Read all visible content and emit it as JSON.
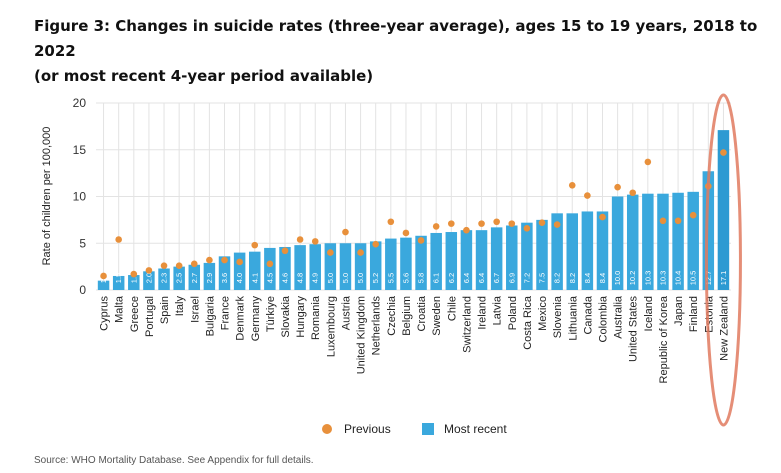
{
  "figure": {
    "title_line1": "Figure 3: Changes in suicide rates (three-year average), ages 15 to 19 years, 2018 to 2022",
    "title_line2": "(or most recent 4-year period available)",
    "source": "Source: WHO Mortality Database. See Appendix for full details."
  },
  "colors": {
    "bar": "#3aa8dd",
    "highlight_bar": "#2d9ad2",
    "dot": "#e8903b",
    "grid": "#e3e3e3",
    "annotation": "#e07a5f"
  },
  "chart_data": {
    "type": "bar",
    "title": "Figure 3: Changes in suicide rates (three-year average), ages 15 to 19 years, 2018 to 2022 (or most recent 4-year period available)",
    "ylabel": "Rate of children per 100,000",
    "xlabel": "",
    "ylim": [
      0,
      20
    ],
    "yticks": [
      0,
      5,
      10,
      15,
      20
    ],
    "grid": "vertical and horizontal",
    "legend_position": "bottom-center",
    "categories": [
      "Cyprus",
      "Malta",
      "Greece",
      "Portugal",
      "Spain",
      "Italy",
      "Israel",
      "Bulgaria",
      "France",
      "Denmark",
      "Germany",
      "Türkiye",
      "Slovakia",
      "Hungary",
      "Romania",
      "Luxembourg",
      "Austria",
      "United Kingdom",
      "Netherlands",
      "Czechia",
      "Belgium",
      "Croatia",
      "Sweden",
      "Chile",
      "Switzerland",
      "Ireland",
      "Latvia",
      "Poland",
      "Costa Rica",
      "Mexico",
      "Slovenia",
      "Lithuania",
      "Canada",
      "Colombia",
      "Australia",
      "United States",
      "Iceland",
      "Republic of Korea",
      "Japan",
      "Finland",
      "Estonia",
      "New Zealand"
    ],
    "series": [
      {
        "name": "Most recent",
        "kind": "bar",
        "values": [
          1.0,
          1.5,
          1.6,
          2.0,
          2.3,
          2.5,
          2.7,
          2.9,
          3.6,
          4.0,
          4.1,
          4.5,
          4.6,
          4.8,
          4.9,
          5.0,
          5.0,
          5.0,
          5.2,
          5.5,
          5.6,
          5.8,
          6.1,
          6.2,
          6.4,
          6.4,
          6.7,
          6.9,
          7.2,
          7.5,
          8.2,
          8.2,
          8.4,
          8.4,
          10.0,
          10.2,
          10.3,
          10.3,
          10.4,
          10.5,
          12.7,
          17.1
        ],
        "labels": [
          "1.0",
          "1.5",
          "1.6",
          "2.0",
          "2.3",
          "2.5",
          "2.7",
          "2.9",
          "3.6",
          "4.0",
          "4.1",
          "4.5",
          "4.6",
          "4.8",
          "4.9",
          "5.0",
          "5.0",
          "5.0",
          "5.2",
          "5.5",
          "5.6",
          "5.8",
          "6.1",
          "6.2",
          "6.4",
          "6.4",
          "6.7",
          "6.9",
          "7.2",
          "7.5",
          "8.2",
          "8.2",
          "8.4",
          "8.4",
          "10.0",
          "10.2",
          "10.3",
          "10.3",
          "10.4",
          "10.5",
          "12.7",
          "17.1"
        ]
      },
      {
        "name": "Previous",
        "kind": "dot",
        "values": [
          1.5,
          5.4,
          1.7,
          2.1,
          2.6,
          2.6,
          2.8,
          3.2,
          3.2,
          3.0,
          4.8,
          2.8,
          4.2,
          5.4,
          5.2,
          4.0,
          6.2,
          4.0,
          4.9,
          7.3,
          6.1,
          5.3,
          6.8,
          7.1,
          6.4,
          7.1,
          7.3,
          7.1,
          6.6,
          7.2,
          7.0,
          11.2,
          10.1,
          7.8,
          11.0,
          10.4,
          13.7,
          7.4,
          7.4,
          8.0,
          11.1,
          14.7
        ]
      }
    ],
    "highlight": "New Zealand"
  }
}
